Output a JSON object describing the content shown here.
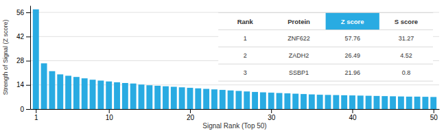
{
  "chart_data": {
    "type": "bar",
    "xlabel": "Signal Rank (Top 50)",
    "ylabel": "Strength of Signal (Z score)",
    "x": [
      1,
      2,
      3,
      4,
      5,
      6,
      7,
      8,
      9,
      10,
      11,
      12,
      13,
      14,
      15,
      16,
      17,
      18,
      19,
      20,
      21,
      22,
      23,
      24,
      25,
      26,
      27,
      28,
      29,
      30,
      31,
      32,
      33,
      34,
      35,
      36,
      37,
      38,
      39,
      40,
      41,
      42,
      43,
      44,
      45,
      46,
      47,
      48,
      49,
      50
    ],
    "values": [
      57.76,
      26.49,
      21.96,
      20.1,
      19.3,
      18.6,
      17.8,
      17.0,
      16.5,
      16.0,
      15.5,
      15.1,
      14.8,
      14.2,
      13.8,
      13.5,
      13.2,
      12.9,
      12.6,
      12.3,
      12.0,
      11.7,
      11.4,
      11.1,
      10.8,
      10.5,
      10.2,
      9.9,
      9.7,
      9.5,
      9.3,
      9.1,
      8.9,
      8.7,
      8.5,
      8.3,
      8.2,
      8.1,
      8.0,
      7.9,
      7.8,
      7.7,
      7.6,
      7.5,
      7.4,
      7.3,
      7.2,
      7.2,
      7.1,
      7.0
    ],
    "color": "#29abe2",
    "xlim": [
      0.3,
      50.7
    ],
    "xticks": [
      1,
      10,
      20,
      30,
      40,
      50
    ],
    "ylim": [
      0,
      60
    ],
    "yticks": [
      0,
      14,
      28,
      42,
      56
    ],
    "grid": true,
    "table": {
      "columns": [
        "Rank",
        "Protein",
        "Z score",
        "S score"
      ],
      "rows": [
        [
          "1",
          "ZNF622",
          "57.76",
          "31.27"
        ],
        [
          "2",
          "ZADH2",
          "26.49",
          "4.52"
        ],
        [
          "3",
          "SSBP1",
          "21.96",
          "0.8"
        ]
      ]
    }
  }
}
